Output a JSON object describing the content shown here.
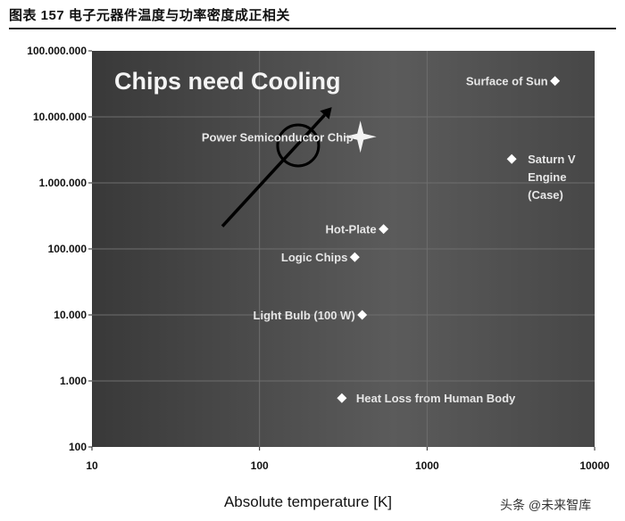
{
  "caption": "图表 157 电子元器件温度与功率密度成正相关",
  "watermark": "头条 @未来智库",
  "colors": {
    "plot_left": "#3a3a3a",
    "plot_mid": "#595959",
    "plot_right": "#4a4a4a",
    "marker": "#ffffff",
    "arrow": "#000000"
  },
  "chart_data": {
    "type": "scatter",
    "title": "Chips need Cooling",
    "xlabel": "Absolute temperature [K]",
    "ylabel": "",
    "x_scale": "log",
    "y_scale": "log",
    "xlim": [
      10,
      10000
    ],
    "ylim": [
      100,
      100000000
    ],
    "grid": true,
    "x_ticks": [
      {
        "value": 10,
        "label": "10"
      },
      {
        "value": 100,
        "label": "100"
      },
      {
        "value": 1000,
        "label": "1000"
      },
      {
        "value": 10000,
        "label": "10000"
      }
    ],
    "y_ticks": [
      {
        "value": 100,
        "label": "100"
      },
      {
        "value": 1000,
        "label": "1.000"
      },
      {
        "value": 10000,
        "label": "10.000"
      },
      {
        "value": 100000,
        "label": "100.000"
      },
      {
        "value": 1000000,
        "label": "1.000.000"
      },
      {
        "value": 10000000,
        "label": "10.000.000"
      },
      {
        "value": 100000000,
        "label": "100.000.000"
      }
    ],
    "points": [
      {
        "label": "Surface of Sun",
        "x": 5800,
        "y": 35000000,
        "label_side": "left"
      },
      {
        "label": "Power Semiconductor Chip",
        "x": 400,
        "y": 5000000,
        "marker": "star",
        "label_side": "left"
      },
      {
        "label": [
          "Saturn V",
          "Engine",
          "(Case)"
        ],
        "x": 3200,
        "y": 2300000,
        "label_side": "right"
      },
      {
        "label": "Hot-Plate",
        "x": 550,
        "y": 200000,
        "label_side": "left"
      },
      {
        "label": "Logic Chips",
        "x": 370,
        "y": 75000,
        "label_side": "left"
      },
      {
        "label": "Light Bulb (100 W)",
        "x": 410,
        "y": 10000,
        "label_side": "left"
      },
      {
        "label": "Heat Loss from Human Body",
        "x": 310,
        "y": 550,
        "label_side": "right"
      }
    ],
    "arrow": {
      "from": [
        60,
        220000
      ],
      "to": [
        270,
        14000000
      ]
    },
    "highlight_circle": {
      "x": 170,
      "y": 3700000
    }
  }
}
